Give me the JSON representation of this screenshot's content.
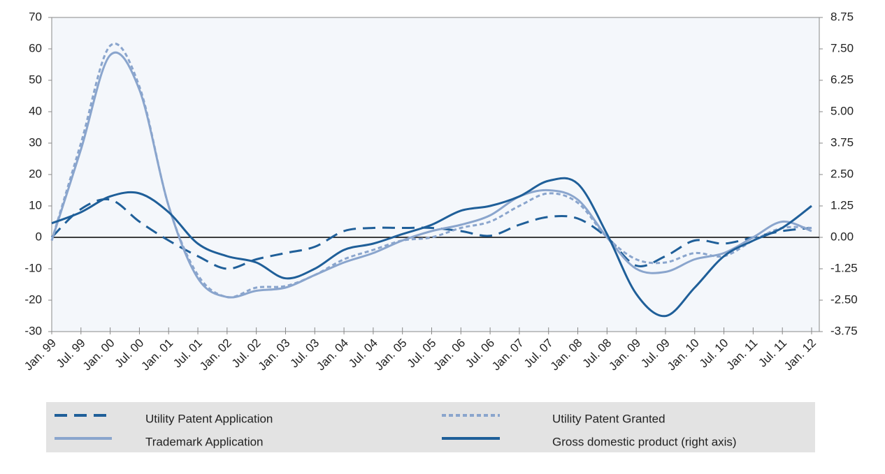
{
  "chart_data": {
    "type": "line",
    "categories": [
      "Jan. 99",
      "Jul. 99",
      "Jan. 00",
      "Jul. 00",
      "Jan. 01",
      "Jul. 01",
      "Jan. 02",
      "Jul. 02",
      "Jan. 03",
      "Jul. 03",
      "Jan. 04",
      "Jul. 04",
      "Jan. 05",
      "Jul. 05",
      "Jan. 06",
      "Jul. 06",
      "Jan. 07",
      "Jul. 07",
      "Jan. 08",
      "Jul. 08",
      "Jan. 09",
      "Jul. 09",
      "Jan. 10",
      "Jul. 10",
      "Jan. 11",
      "Jul. 11",
      "Jan. 12"
    ],
    "series": [
      {
        "name": "Utility Patent Application",
        "color": "#1f5f99",
        "dash": "dashed",
        "values": [
          0,
          9,
          12,
          5,
          -1,
          -6,
          -10,
          -7,
          -5,
          -3,
          2,
          3,
          3,
          3,
          2,
          0.5,
          4,
          6.5,
          6,
          0,
          -9,
          -6,
          -1,
          -2,
          0,
          2,
          3
        ]
      },
      {
        "name": "Utility Patent Granted",
        "color": "#8aa5cd",
        "dash": "dotted",
        "values": [
          -1,
          30,
          61,
          48,
          10,
          -12,
          -19,
          -16,
          -15.5,
          -12,
          -7,
          -4,
          -1,
          0,
          3,
          5,
          10,
          14,
          11,
          0,
          -7,
          -8,
          -5,
          -6,
          -1,
          3,
          3
        ]
      },
      {
        "name": "Trademark Application",
        "color": "#8aa5cd",
        "dash": "solid",
        "values": [
          -1,
          28,
          58,
          47,
          10,
          -13,
          -19,
          -17,
          -16,
          -12,
          -8,
          -5,
          -1,
          2,
          4,
          7,
          13,
          15,
          12,
          0,
          -10,
          -11,
          -7,
          -5,
          0,
          5,
          2
        ]
      },
      {
        "name": "Gross domestic product (right axis)",
        "color": "#1f5f99",
        "dash": "solid",
        "axis": "y2",
        "values": [
          0.56,
          1.0,
          1.63,
          1.75,
          1.0,
          -0.25,
          -0.75,
          -1.0,
          -1.63,
          -1.25,
          -0.5,
          -0.25,
          0.13,
          0.5,
          1.06,
          1.25,
          1.63,
          2.25,
          2.13,
          0.13,
          -2.25,
          -3.13,
          -2.0,
          -0.75,
          -0.13,
          0.38,
          1.25
        ]
      }
    ],
    "ylim": [
      -30,
      70
    ],
    "yticks": [
      -30,
      -20,
      -10,
      0,
      10,
      20,
      30,
      40,
      50,
      60,
      70
    ],
    "y2lim": [
      -3.75,
      8.75
    ],
    "y2ticks": [
      -3.75,
      {
        "value": -2.5,
        "label": "-2.50"
      },
      -1.25,
      {
        "value": 0,
        "label": "0.00"
      },
      1.25,
      {
        "value": 2.5,
        "label": "2.50"
      },
      3.75,
      {
        "value": 5,
        "label": "5.00"
      },
      6.25,
      {
        "value": 7.5,
        "label": "7.50"
      },
      8.75
    ],
    "grid": false
  }
}
